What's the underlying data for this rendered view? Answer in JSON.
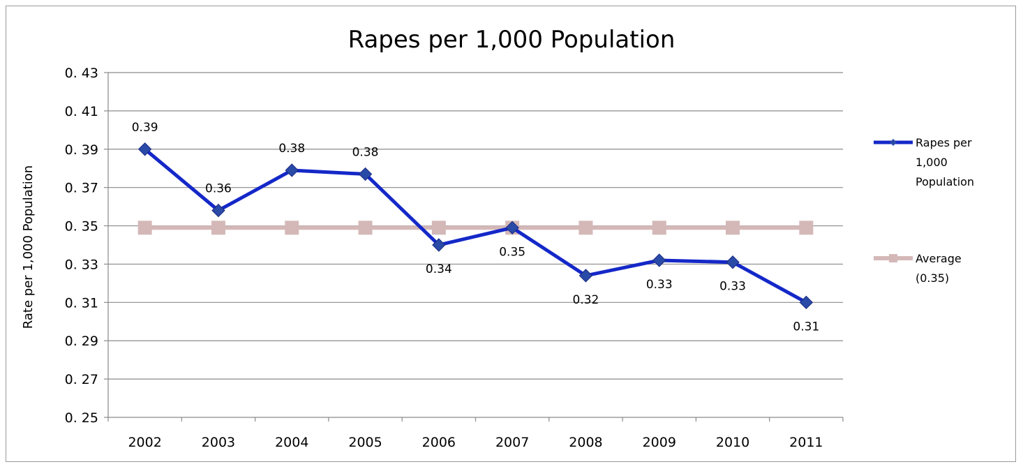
{
  "chart_data": {
    "type": "line",
    "title": "Rapes per 1,000 Population",
    "xlabel": "",
    "ylabel": "Rate per 1,000 Population",
    "ylim": [
      0.25,
      0.43
    ],
    "yticks": [
      "0. 25",
      "0. 27",
      "0. 29",
      "0. 31",
      "0. 33",
      "0. 35",
      "0. 37",
      "0. 39",
      "0. 41",
      "0. 43"
    ],
    "ytick_values": [
      0.25,
      0.27,
      0.29,
      0.31,
      0.33,
      0.35,
      0.37,
      0.39,
      0.41,
      0.43
    ],
    "categories": [
      "2002",
      "2003",
      "2004",
      "2005",
      "2006",
      "2007",
      "2008",
      "2009",
      "2010",
      "2011"
    ],
    "grid": true,
    "legend_position": "right",
    "series": [
      {
        "name": "Rapes per 1,000 Population",
        "legend_lines": [
          "Rapes per",
          "1,000",
          "Population"
        ],
        "color": "#1428c8",
        "marker": "diamond",
        "values": [
          0.39,
          0.358,
          0.379,
          0.377,
          0.34,
          0.349,
          0.324,
          0.332,
          0.331,
          0.31
        ],
        "labels": [
          "0.39",
          "0.36",
          "0.38",
          "0.38",
          "0.34",
          "0.35",
          "0.32",
          "0.33",
          "0.33",
          "0.31"
        ],
        "label_side": [
          "above",
          "above",
          "above",
          "above",
          "below",
          "below",
          "below",
          "below",
          "below",
          "below"
        ]
      },
      {
        "name": "Average (0.35)",
        "legend_lines": [
          "Average",
          "(0.35)"
        ],
        "color": "#d4b8b8",
        "marker": "square",
        "values": [
          0.349,
          0.349,
          0.349,
          0.349,
          0.349,
          0.349,
          0.349,
          0.349,
          0.349,
          0.349
        ]
      }
    ]
  }
}
